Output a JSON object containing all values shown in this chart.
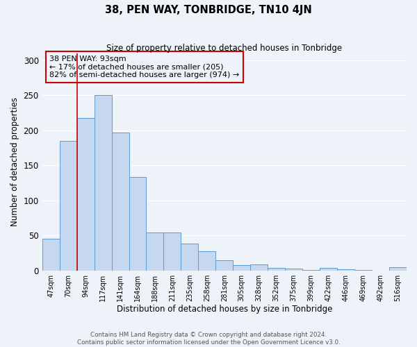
{
  "title": "38, PEN WAY, TONBRIDGE, TN10 4JN",
  "subtitle": "Size of property relative to detached houses in Tonbridge",
  "xlabel": "Distribution of detached houses by size in Tonbridge",
  "ylabel": "Number of detached properties",
  "bar_labels": [
    "47sqm",
    "70sqm",
    "94sqm",
    "117sqm",
    "141sqm",
    "164sqm",
    "188sqm",
    "211sqm",
    "235sqm",
    "258sqm",
    "281sqm",
    "305sqm",
    "328sqm",
    "352sqm",
    "375sqm",
    "399sqm",
    "422sqm",
    "446sqm",
    "469sqm",
    "492sqm",
    "516sqm"
  ],
  "bar_values": [
    45,
    185,
    218,
    250,
    197,
    133,
    54,
    54,
    38,
    27,
    15,
    8,
    9,
    4,
    3,
    1,
    4,
    2,
    1,
    0,
    5
  ],
  "bar_color": "#c5d8f0",
  "bar_edge_color": "#5b9bd5",
  "property_line_color": "#cc0000",
  "annotation_title": "38 PEN WAY: 93sqm",
  "annotation_line1": "← 17% of detached houses are smaller (205)",
  "annotation_line2": "82% of semi-detached houses are larger (974) →",
  "annotation_box_color": "#cc0000",
  "ylim": [
    0,
    310
  ],
  "yticks": [
    0,
    50,
    100,
    150,
    200,
    250,
    300
  ],
  "footer1": "Contains HM Land Registry data © Crown copyright and database right 2024.",
  "footer2": "Contains public sector information licensed under the Open Government Licence v3.0.",
  "background_color": "#eef2f9",
  "grid_color": "#d8e0ee",
  "plot_bg_color": "#eef2f9"
}
